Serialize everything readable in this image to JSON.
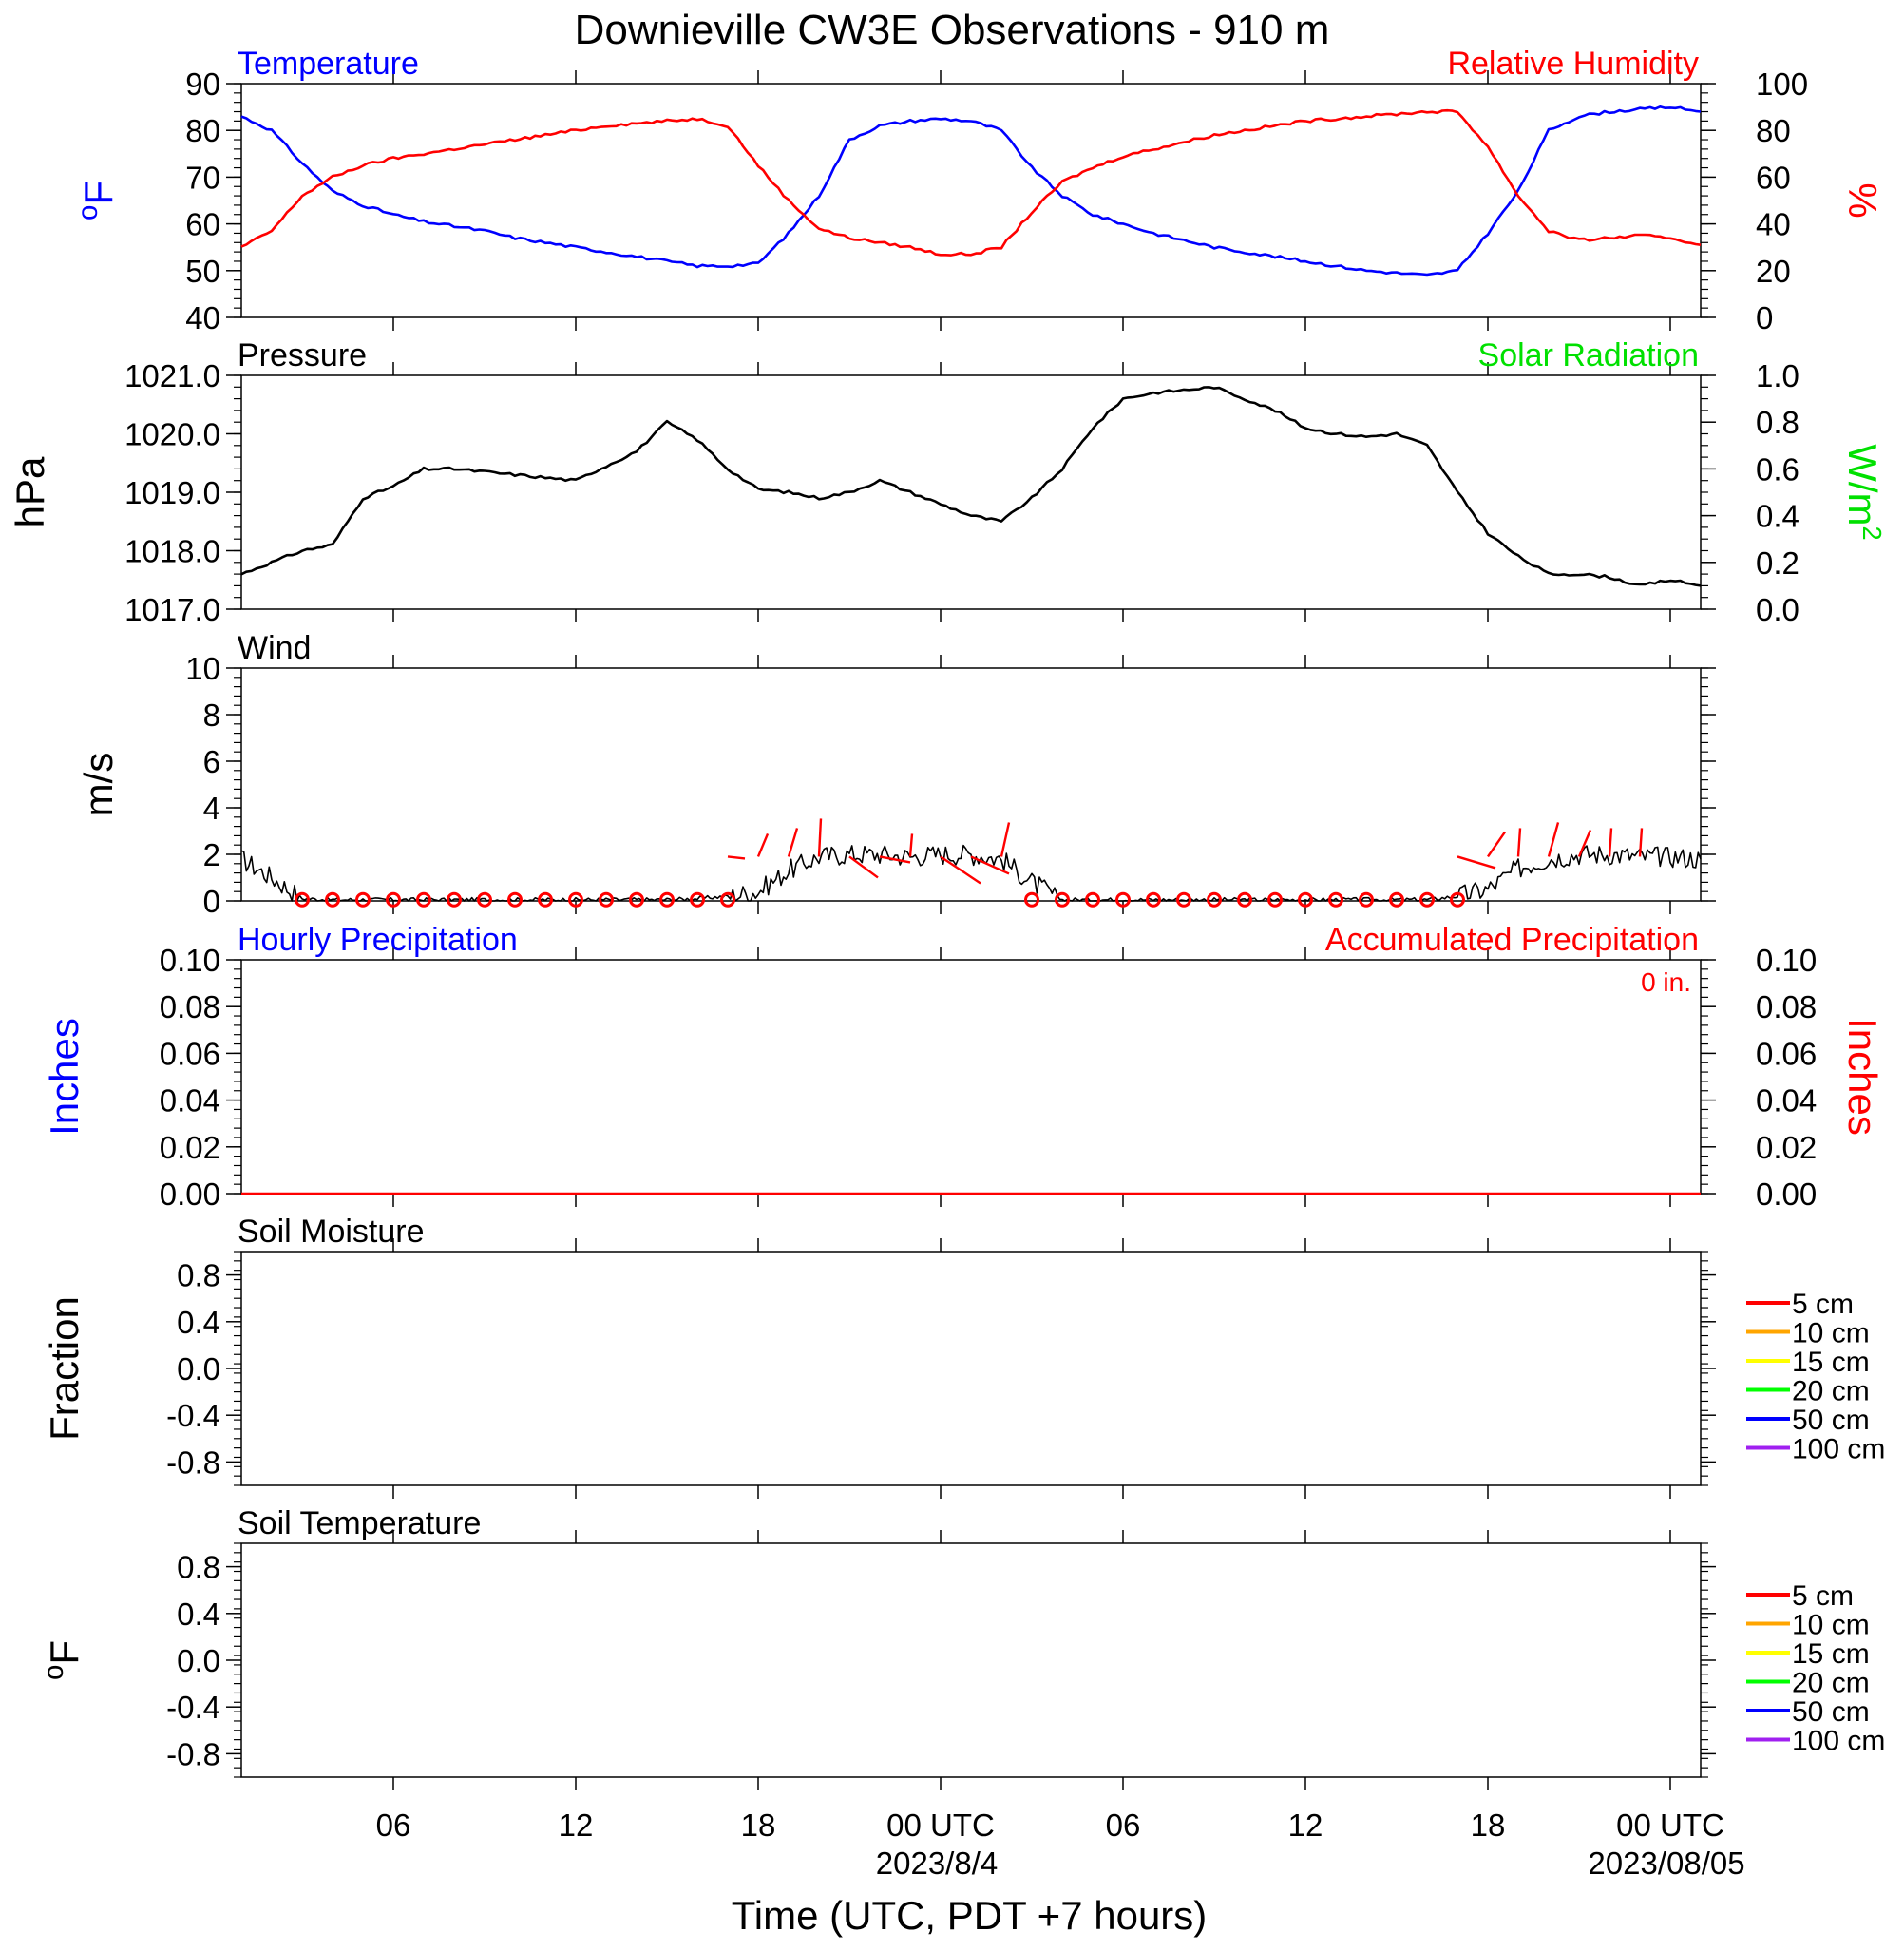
{
  "title": "Downieville CW3E Observations - 910 m",
  "x_axis": {
    "label": "Time (UTC, PDT +7 hours)",
    "range_hours": [
      0,
      48
    ],
    "ticks": [
      {
        "hour": 5,
        "label": "06"
      },
      {
        "hour": 11,
        "label": "12"
      },
      {
        "hour": 17,
        "label": "18"
      },
      {
        "hour": 23,
        "label": "00 UTC"
      },
      {
        "hour": 29,
        "label": "06"
      },
      {
        "hour": 35,
        "label": "12"
      },
      {
        "hour": 41,
        "label": "18"
      },
      {
        "hour": 47,
        "label": "00 UTC"
      }
    ],
    "date_labels": [
      {
        "hour": 23,
        "label": "2023/8/4"
      },
      {
        "hour": 47,
        "label": "2023/08/05"
      }
    ]
  },
  "chart_data": [
    {
      "type": "line",
      "panel": "temperature-humidity",
      "left_title": "Temperature",
      "right_title": "Relative Humidity",
      "ylabel_left": "oF",
      "ylabel_right": "%",
      "ylim_left": [
        40,
        90
      ],
      "ylim_right": [
        0,
        100
      ],
      "yticks_left": [
        "90",
        "80",
        "70",
        "60",
        "50",
        "40"
      ],
      "yticks_right": [
        "100",
        "80",
        "60",
        "40",
        "20",
        "0"
      ],
      "series": [
        {
          "name": "Temperature",
          "color": "#0000ff",
          "axis": "left",
          "x": [
            0,
            1,
            2,
            3,
            4,
            5,
            6,
            7,
            8,
            9,
            10,
            11,
            12,
            13,
            14,
            15,
            16,
            17,
            18,
            19,
            20,
            21,
            22,
            23,
            24,
            25,
            26,
            27,
            28,
            29,
            30,
            31,
            32,
            33,
            34,
            35,
            36,
            37,
            38,
            39,
            40,
            41,
            42,
            43,
            44,
            45,
            46,
            47,
            48
          ],
          "y": [
            83,
            80,
            73,
            67,
            64,
            62,
            60.5,
            59.5,
            58.5,
            57,
            56,
            55,
            54,
            53,
            52,
            51,
            51,
            51.5,
            58,
            66,
            78,
            81,
            82,
            82.5,
            82,
            80,
            72,
            66,
            62,
            60,
            58,
            56.5,
            55,
            54,
            53,
            52,
            51,
            50,
            49.5,
            49,
            50,
            58,
            67,
            80,
            83,
            84,
            84.5,
            85,
            84
          ]
        },
        {
          "name": "Relative Humidity",
          "color": "#ff0000",
          "axis": "right",
          "x": [
            0,
            1,
            2,
            3,
            4,
            5,
            6,
            7,
            8,
            9,
            10,
            11,
            12,
            13,
            14,
            15,
            16,
            17,
            18,
            19,
            20,
            21,
            22,
            23,
            24,
            25,
            26,
            27,
            28,
            29,
            30,
            31,
            32,
            33,
            34,
            35,
            36,
            37,
            38,
            39,
            40,
            41,
            42,
            43,
            44,
            45,
            46,
            47,
            48
          ],
          "y": [
            30,
            37,
            52,
            60,
            65,
            68,
            70,
            72,
            74,
            76,
            78,
            80,
            82,
            83,
            84,
            85,
            82,
            65,
            50,
            38,
            34,
            32,
            30,
            27,
            27,
            30,
            45,
            58,
            64,
            69,
            72,
            75,
            78,
            80,
            82,
            84,
            85,
            86,
            87,
            88,
            88,
            73,
            52,
            37,
            33,
            34,
            35,
            34,
            31
          ]
        }
      ]
    },
    {
      "type": "line",
      "panel": "pressure-solar",
      "left_title": "Pressure",
      "right_title": "Solar Radiation",
      "ylabel_left": "hPa",
      "ylabel_right": "W/m2",
      "ylim_left": [
        1017.0,
        1021.0
      ],
      "ylim_right": [
        0.0,
        1.0
      ],
      "yticks_left": [
        "1021.0",
        "1020.0",
        "1019.0",
        "1018.0",
        "1017.0"
      ],
      "yticks_right": [
        "1.0",
        "0.8",
        "0.6",
        "0.4",
        "0.2",
        "0.0"
      ],
      "series": [
        {
          "name": "Pressure",
          "color": "#000000",
          "axis": "left",
          "x": [
            0,
            1,
            2,
            3,
            4,
            5,
            6,
            7,
            8,
            9,
            10,
            11,
            12,
            13,
            14,
            15,
            16,
            17,
            18,
            19,
            20,
            21,
            22,
            23,
            24,
            25,
            26,
            27,
            28,
            29,
            30,
            31,
            32,
            33,
            34,
            35,
            36,
            37,
            38,
            39,
            40,
            41,
            42,
            43,
            44,
            45,
            46,
            47,
            48
          ],
          "y": [
            1017.6,
            1017.8,
            1018.0,
            1018.1,
            1018.9,
            1019.1,
            1019.4,
            1019.4,
            1019.35,
            1019.3,
            1019.25,
            1019.2,
            1019.45,
            1019.7,
            1020.2,
            1019.9,
            1019.4,
            1019.05,
            1019.0,
            1018.9,
            1019.0,
            1019.2,
            1019.0,
            1018.8,
            1018.6,
            1018.5,
            1018.9,
            1019.4,
            1020.1,
            1020.6,
            1020.7,
            1020.75,
            1020.8,
            1020.6,
            1020.4,
            1020.1,
            1020.0,
            1019.95,
            1020.0,
            1019.8,
            1019.0,
            1018.3,
            1017.9,
            1017.6,
            1017.6,
            1017.55,
            1017.4,
            1017.5,
            1017.4
          ]
        }
      ]
    },
    {
      "type": "line",
      "panel": "wind",
      "left_title": "Wind",
      "ylabel_left": "m/s",
      "ylim_left": [
        0,
        10
      ],
      "yticks_left": [
        "10",
        "8",
        "6",
        "4",
        "2",
        "0"
      ],
      "series": [
        {
          "name": "Wind",
          "color": "#000000",
          "axis": "left",
          "x": [
            0,
            1,
            2,
            3,
            4,
            5,
            6,
            7,
            8,
            9,
            10,
            11,
            12,
            13,
            14,
            15,
            16,
            17,
            18,
            19,
            20,
            21,
            22,
            23,
            24,
            25,
            26,
            27,
            28,
            29,
            30,
            31,
            32,
            33,
            34,
            35,
            36,
            37,
            38,
            39,
            40,
            41,
            42,
            43,
            44,
            45,
            46,
            47,
            48
          ],
          "y": [
            1.8,
            1.0,
            0.1,
            0.05,
            0.05,
            0.05,
            0.05,
            0.05,
            0.05,
            0.05,
            0.05,
            0.05,
            0.05,
            0.05,
            0.05,
            0.1,
            0.2,
            0.4,
            1.3,
            1.9,
            2.0,
            2.0,
            1.9,
            2.0,
            2.0,
            1.8,
            0.8,
            0.05,
            0.05,
            0.05,
            0.05,
            0.05,
            0.05,
            0.05,
            0.05,
            0.05,
            0.05,
            0.05,
            0.05,
            0.05,
            0.2,
            0.5,
            1.4,
            1.8,
            2.0,
            2.0,
            1.9,
            1.9,
            1.8
          ]
        }
      ],
      "calm_markers_hours": [
        2,
        3,
        4,
        5,
        6,
        7,
        8,
        9,
        10,
        11,
        12,
        13,
        14,
        15,
        16,
        26,
        27,
        28,
        29,
        30,
        31,
        32,
        33,
        34,
        35,
        36,
        37,
        38,
        39,
        40
      ],
      "marker_color": "#ff0000",
      "wind_barbs": [
        {
          "hour": 16,
          "dx": 18,
          "dy": 2
        },
        {
          "hour": 17,
          "dx": 10,
          "dy": -24
        },
        {
          "hour": 18,
          "dx": 9,
          "dy": -30
        },
        {
          "hour": 19,
          "dx": 2,
          "dy": -40
        },
        {
          "hour": 20,
          "dx": 30,
          "dy": 22
        },
        {
          "hour": 21,
          "dx": 32,
          "dy": 6
        },
        {
          "hour": 22,
          "dx": 2,
          "dy": -24
        },
        {
          "hour": 23,
          "dx": 42,
          "dy": 28
        },
        {
          "hour": 24,
          "dx": 40,
          "dy": 18
        },
        {
          "hour": 25,
          "dx": 8,
          "dy": -36
        },
        {
          "hour": 40,
          "dx": 40,
          "dy": 12
        },
        {
          "hour": 41,
          "dx": 18,
          "dy": -26
        },
        {
          "hour": 42,
          "dx": 2,
          "dy": -30
        },
        {
          "hour": 43,
          "dx": 10,
          "dy": -36
        },
        {
          "hour": 44,
          "dx": 12,
          "dy": -28
        },
        {
          "hour": 45,
          "dx": 2,
          "dy": -30
        },
        {
          "hour": 46,
          "dx": 2,
          "dy": -30
        }
      ]
    },
    {
      "type": "line",
      "panel": "precipitation",
      "left_title": "Hourly Precipitation",
      "right_title": "Accumulated Precipitation",
      "accumulated_total": "0 in.",
      "ylabel_left": "Inches",
      "ylabel_right": "Inches",
      "ylim_left": [
        0.0,
        0.1
      ],
      "ylim_right": [
        0.0,
        0.1
      ],
      "yticks_left": [
        "0.10",
        "0.08",
        "0.06",
        "0.04",
        "0.02",
        "0.00"
      ],
      "yticks_right": [
        "0.10",
        "0.08",
        "0.06",
        "0.04",
        "0.02",
        "0.00"
      ],
      "series": [
        {
          "name": "Accumulated Precipitation",
          "color": "#ff0000",
          "axis": "right",
          "x": [
            0,
            48
          ],
          "y": [
            0,
            0
          ]
        }
      ]
    },
    {
      "type": "line",
      "panel": "soil-moisture",
      "left_title": "Soil Moisture",
      "ylabel_left": "Fraction",
      "ylim_left": [
        -1.0,
        1.0
      ],
      "yticks_left": [
        "0.8",
        "0.4",
        "0.0",
        "-0.4",
        "-0.8"
      ],
      "legend": [
        {
          "label": "5 cm",
          "color": "#ff0000"
        },
        {
          "label": "10 cm",
          "color": "#ffa500"
        },
        {
          "label": "15 cm",
          "color": "#ffff00"
        },
        {
          "label": "20 cm",
          "color": "#00ff00"
        },
        {
          "label": "50 cm",
          "color": "#0000ff"
        },
        {
          "label": "100 cm",
          "color": "#a020f0"
        }
      ],
      "series": []
    },
    {
      "type": "line",
      "panel": "soil-temperature",
      "left_title": "Soil Temperature",
      "ylabel_left": "oF",
      "ylim_left": [
        -1.0,
        1.0
      ],
      "yticks_left": [
        "0.8",
        "0.4",
        "0.0",
        "-0.4",
        "-0.8"
      ],
      "legend": [
        {
          "label": "5 cm",
          "color": "#ff0000"
        },
        {
          "label": "10 cm",
          "color": "#ffa500"
        },
        {
          "label": "15 cm",
          "color": "#ffff00"
        },
        {
          "label": "20 cm",
          "color": "#00ff00"
        },
        {
          "label": "50 cm",
          "color": "#0000ff"
        },
        {
          "label": "100 cm",
          "color": "#a020f0"
        }
      ],
      "series": []
    }
  ]
}
